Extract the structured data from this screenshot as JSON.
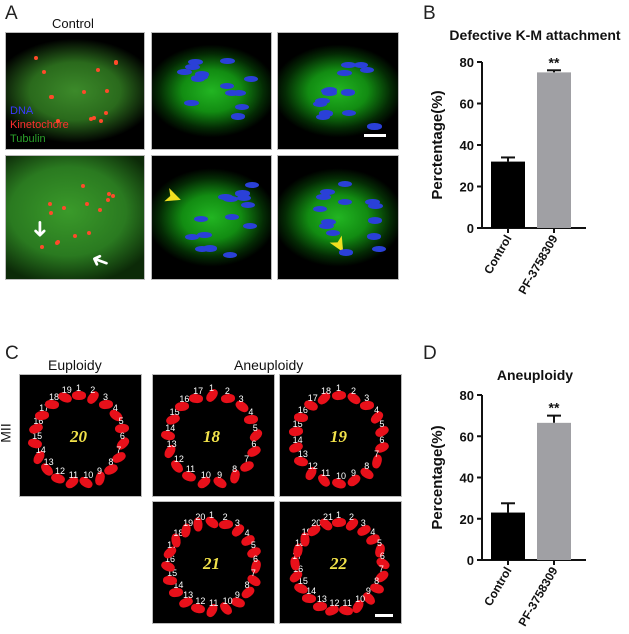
{
  "panelA": {
    "label": "A",
    "title": "Control",
    "legend": [
      {
        "text": "DNA",
        "color": "#3a3aff"
      },
      {
        "text": "Kinetochore",
        "color": "#ff3030"
      },
      {
        "text": "Tubulin",
        "color": "#2aa02a"
      }
    ]
  },
  "panelC": {
    "label": "C",
    "euploidy": "Euploidy",
    "aneuploidy": "Aneuploidy",
    "row_label": "MII",
    "panels": [
      {
        "big": "20",
        "numbers": [
          "1",
          "2",
          "3",
          "4",
          "5",
          "6",
          "7",
          "8",
          "9",
          "10",
          "11",
          "12",
          "13",
          "14",
          "15",
          "16",
          "17",
          "18",
          "19"
        ]
      },
      {
        "big": "18",
        "numbers": [
          "1",
          "2",
          "3",
          "4",
          "5",
          "6",
          "7",
          "8",
          "9",
          "10",
          "11",
          "12",
          "13",
          "14",
          "15",
          "16",
          "17"
        ]
      },
      {
        "big": "19",
        "numbers": [
          "1",
          "2",
          "3",
          "4",
          "5",
          "6",
          "7",
          "8",
          "9",
          "10",
          "11",
          "12",
          "13",
          "14",
          "15",
          "16",
          "17",
          "18"
        ]
      },
      {
        "big": "21",
        "numbers": [
          "1",
          "2",
          "3",
          "4",
          "5",
          "6",
          "7",
          "8",
          "9",
          "10",
          "11",
          "12",
          "13",
          "14",
          "15",
          "16",
          "17",
          "18",
          "19",
          "20"
        ]
      },
      {
        "big": "22",
        "numbers": [
          "1",
          "2",
          "3",
          "4",
          "5",
          "6",
          "7",
          "8",
          "9",
          "10",
          "11",
          "12",
          "13",
          "14",
          "15",
          "16",
          "17",
          "18",
          "19",
          "20",
          "21"
        ]
      }
    ]
  },
  "chart_data": [
    {
      "panel": "B",
      "type": "bar",
      "title": "Defective K-M attachment",
      "ylabel": "Perctentage(%)",
      "xlabel": "",
      "categories": [
        "Control",
        "PF-3758309"
      ],
      "values": [
        32,
        75
      ],
      "errors": [
        2,
        1
      ],
      "colors": [
        "#000000",
        "#a0a0a4"
      ],
      "ylim": [
        0,
        80
      ],
      "yticks": [
        0,
        20,
        40,
        60,
        80
      ],
      "annotations": [
        {
          "category": "PF-3758309",
          "text": "**"
        }
      ]
    },
    {
      "panel": "D",
      "type": "bar",
      "title": "Aneuploidy",
      "ylabel": "Percentage(%)",
      "xlabel": "",
      "categories": [
        "Control",
        "PF-3758309"
      ],
      "values": [
        23,
        66.5
      ],
      "errors": [
        4.5,
        3.5
      ],
      "colors": [
        "#000000",
        "#a0a0a4"
      ],
      "ylim": [
        0,
        80
      ],
      "yticks": [
        0,
        20,
        40,
        60,
        80
      ],
      "annotations": [
        {
          "category": "PF-3758309",
          "text": "**"
        }
      ]
    }
  ]
}
